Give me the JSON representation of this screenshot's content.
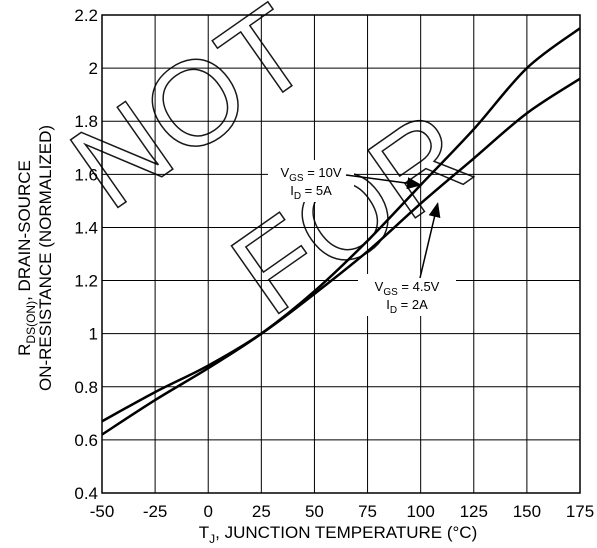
{
  "watermark": {
    "text": "NOT FOR",
    "color": "#000000"
  },
  "chart_data": {
    "type": "line",
    "title": "",
    "xlabel": {
      "main": "T",
      "sub": "J",
      "rest": ", JUNCTION TEMPERATURE (°C)"
    },
    "ylabel": {
      "line1_main": "R",
      "line1_sub": "DS(ON)",
      "line1_rest": ", DRAIN-SOURCE",
      "line2": "ON-RESISTANCE (NORMALIZED)"
    },
    "xlim": [
      -50,
      175
    ],
    "ylim": [
      0.4,
      2.2
    ],
    "xticks": [
      -50,
      -25,
      0,
      25,
      50,
      75,
      100,
      125,
      150,
      175
    ],
    "xtick_labels": [
      "-50",
      "-25",
      "0",
      "25",
      "50",
      "75",
      "100",
      "125",
      "150",
      "175"
    ],
    "yticks": [
      0.4,
      0.6,
      0.8,
      1.0,
      1.2,
      1.4,
      1.6,
      1.8,
      2.0,
      2.2
    ],
    "ytick_labels": [
      "0.4",
      "0.6",
      "0.8",
      "1",
      "1.2",
      "1.4",
      "1.6",
      "1.8",
      "2",
      "2.2"
    ],
    "grid": true,
    "legend": "none",
    "series": [
      {
        "x": [
          -50,
          -25,
          0,
          25,
          50,
          75,
          100,
          125,
          150,
          175
        ],
        "y": [
          0.62,
          0.75,
          0.87,
          1.0,
          1.16,
          1.35,
          1.56,
          1.77,
          2.0,
          2.15
        ],
        "color": "#000000"
      },
      {
        "x": [
          -50,
          -25,
          0,
          25,
          50,
          75,
          100,
          125,
          150,
          175
        ],
        "y": [
          0.67,
          0.78,
          0.88,
          1.0,
          1.15,
          1.31,
          1.49,
          1.66,
          1.83,
          1.96
        ],
        "color": "#000000"
      }
    ],
    "annotations": [
      {
        "line1_main": "V",
        "line1_sub": "GS",
        "line1_rest": " = 10V",
        "line2_main": "I",
        "line2_sub": "D",
        "line2_rest": " = 5A",
        "points_to_series": 0,
        "target": [
          100,
          1.56
        ]
      },
      {
        "line1_main": "V",
        "line1_sub": "GS",
        "line1_rest": " = 4.5V",
        "line2_main": "I",
        "line2_sub": "D",
        "line2_rest": " = 2A",
        "points_to_series": 1,
        "target": [
          108,
          1.49
        ]
      }
    ]
  }
}
